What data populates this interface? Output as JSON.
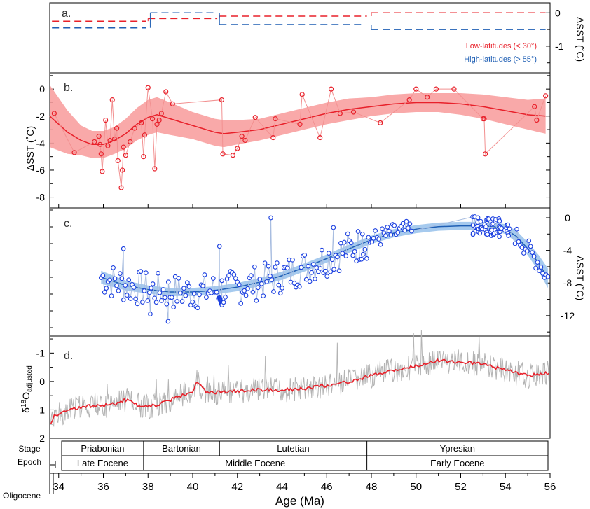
{
  "figure": {
    "x_axis_label": "Age (Ma)",
    "x_ticks": [
      "34",
      "36",
      "38",
      "40",
      "42",
      "44",
      "46",
      "48",
      "50",
      "52",
      "54",
      "56"
    ]
  },
  "colors": {
    "low_lat": "#e8202a",
    "low_band": "#f8a0a0",
    "high_lat": "#1f5fb4",
    "high_band": "#9cc4ec",
    "points_blue": "#1a3fe0",
    "grey": "#b4b4b4"
  },
  "panel_a": {
    "label": "a.",
    "y_label": "ΔSST (˚C)",
    "y_ticks": [
      "0",
      "-1"
    ],
    "legend": [
      "Low-latitudes (< 30°)",
      "High-latitudes (> 55°)"
    ]
  },
  "panel_b": {
    "label": "b.",
    "y_label": "ΔSST (˚C)",
    "y_ticks": [
      "0",
      "-2",
      "-4",
      "-6",
      "-8"
    ]
  },
  "panel_c": {
    "label": "c.",
    "y_label": "ΔSST (˚C)",
    "y_ticks": [
      "0",
      "-4",
      "-8",
      "-12"
    ]
  },
  "panel_d": {
    "label": "d.",
    "y_label": "δ18Oadjusted",
    "y_ticks": [
      "-1",
      "0",
      "1",
      "2"
    ]
  },
  "stages": {
    "row_label": "Stage",
    "items": [
      {
        "name": "Priabonian",
        "start": 33.9,
        "end": 37.8
      },
      {
        "name": "Bartonian",
        "start": 37.8,
        "end": 41.2
      },
      {
        "name": "Lutetian",
        "start": 41.2,
        "end": 47.8
      },
      {
        "name": "Ypresian",
        "start": 47.8,
        "end": 56.0
      }
    ]
  },
  "epochs": {
    "row_label": "Epoch",
    "oligocene_label": "Oligocene",
    "items": [
      {
        "name": "Late Eocene",
        "start": 33.9,
        "end": 37.8
      },
      {
        "name": "Middle Eocene",
        "start": 37.8,
        "end": 47.8
      },
      {
        "name": "Early Eocene",
        "start": 47.8,
        "end": 56.0
      }
    ]
  },
  "chart_data": [
    {
      "type": "line",
      "panel": "a",
      "x_range": [
        33.6,
        56.0
      ],
      "ylim": [
        -1.8,
        0.3
      ],
      "series": [
        {
          "name": "Low-latitudes (< 30°)",
          "segments": [
            {
              "x": [
                33.7,
                37.9
              ],
              "y": -0.25
            },
            {
              "x": [
                38.0,
                41.1
              ],
              "y": -0.17
            },
            {
              "x": [
                41.2,
                47.8
              ],
              "y": -0.1
            },
            {
              "x": [
                48.0,
                55.8
              ],
              "y": 0.0
            }
          ]
        },
        {
          "name": "High-latitudes (> 55°)",
          "segments": [
            {
              "x": [
                33.7,
                37.9
              ],
              "y": -0.45
            },
            {
              "x": [
                38.1,
                41.1
              ],
              "y": 0.0
            },
            {
              "x": [
                41.2,
                47.7
              ],
              "y": -0.35
            },
            {
              "x": [
                48.0,
                55.8
              ],
              "y": -0.5
            }
          ]
        }
      ]
    },
    {
      "type": "scatter",
      "panel": "b",
      "x_range": [
        33.6,
        56.0
      ],
      "ylim": [
        -8.8,
        1.2
      ],
      "points": [
        [
          33.8,
          -1.8
        ],
        [
          34.7,
          -4.7
        ],
        [
          35.6,
          -3.9
        ],
        [
          35.8,
          -3.5
        ],
        [
          35.85,
          -4.1
        ],
        [
          35.9,
          -4.8
        ],
        [
          35.95,
          -6.1
        ],
        [
          36.1,
          -2.3
        ],
        [
          36.2,
          -4.2
        ],
        [
          36.3,
          -3.8
        ],
        [
          36.4,
          -0.8
        ],
        [
          36.5,
          -3.7
        ],
        [
          36.6,
          -2.9
        ],
        [
          36.65,
          -5.3
        ],
        [
          36.8,
          -7.3
        ],
        [
          36.85,
          -6.0
        ],
        [
          36.9,
          -4.3
        ],
        [
          37.0,
          -4.9
        ],
        [
          37.2,
          -3.9
        ],
        [
          37.4,
          -2.9
        ],
        [
          37.7,
          -2.5
        ],
        [
          37.8,
          -5.0
        ],
        [
          37.85,
          -3.4
        ],
        [
          38.0,
          0.1
        ],
        [
          38.2,
          -2.2
        ],
        [
          38.3,
          -5.9
        ],
        [
          38.4,
          -2.6
        ],
        [
          38.5,
          -2.3
        ],
        [
          38.6,
          -1.8
        ],
        [
          38.8,
          -0.2
        ],
        [
          39.1,
          -1.1
        ],
        [
          41.3,
          -0.8
        ],
        [
          41.35,
          -4.8
        ],
        [
          41.8,
          -4.9
        ],
        [
          42.0,
          -4.4
        ],
        [
          42.2,
          -3.5
        ],
        [
          42.35,
          -3.8
        ],
        [
          42.8,
          -2.1
        ],
        [
          43.6,
          -3.6
        ],
        [
          43.7,
          -2.2
        ],
        [
          44.8,
          -2.6
        ],
        [
          44.9,
          -0.4
        ],
        [
          45.7,
          -3.6
        ],
        [
          46.2,
          0.0
        ],
        [
          46.6,
          -1.8
        ],
        [
          47.2,
          -1.7
        ],
        [
          48.4,
          -2.5
        ],
        [
          49.7,
          -0.8
        ],
        [
          50.0,
          0.0
        ],
        [
          50.5,
          -0.6
        ],
        [
          50.9,
          0.0
        ],
        [
          51.7,
          0.0
        ],
        [
          53.0,
          -2.2
        ],
        [
          53.05,
          -2.2
        ],
        [
          53.1,
          -4.8
        ],
        [
          55.3,
          -1.3
        ],
        [
          55.4,
          -2.3
        ],
        [
          55.8,
          -0.5
        ]
      ],
      "smooth_x": [
        33.6,
        34.4,
        35.0,
        35.5,
        36.0,
        36.5,
        37.0,
        37.5,
        38.0,
        38.4,
        39.0,
        40.0,
        41.0,
        41.4,
        42.0,
        43.0,
        44.0,
        45.0,
        46.0,
        47.0,
        48.0,
        49.0,
        50.0,
        51.0,
        52.0,
        53.0,
        54.0,
        55.0,
        55.8
      ],
      "smooth_y": [
        -2.0,
        -3.2,
        -3.8,
        -4.1,
        -4.1,
        -3.8,
        -3.3,
        -2.6,
        -2.1,
        -1.9,
        -2.2,
        -2.7,
        -3.2,
        -3.3,
        -3.2,
        -3.0,
        -2.6,
        -2.2,
        -1.8,
        -1.5,
        -1.3,
        -1.1,
        -1.0,
        -1.0,
        -1.1,
        -1.3,
        -1.6,
        -1.9,
        -2.0
      ],
      "band_halfwidth": [
        2.3,
        1.6,
        1.1,
        1.0,
        1.0,
        1.0,
        1.1,
        1.2,
        1.3,
        1.3,
        1.2,
        1.0,
        1.0,
        1.0,
        0.9,
        0.8,
        0.8,
        0.8,
        0.8,
        0.8,
        0.7,
        0.7,
        0.7,
        0.7,
        0.8,
        0.9,
        1.0,
        1.1,
        1.3
      ]
    },
    {
      "type": "scatter",
      "panel": "c",
      "x_range": [
        33.6,
        56.0
      ],
      "ylim": [
        -14.5,
        1.2
      ],
      "smooth_x": [
        35.9,
        37.0,
        38.0,
        39.0,
        40.0,
        41.0,
        42.0,
        43.0,
        44.0,
        45.0,
        46.0,
        47.0,
        48.0,
        49.0,
        50.0,
        51.0,
        52.0,
        53.0,
        53.5,
        54.0,
        54.5,
        55.0,
        55.5,
        55.9
      ],
      "smooth_y": [
        -7.3,
        -8.3,
        -8.8,
        -9.1,
        -9.1,
        -8.9,
        -8.5,
        -7.9,
        -7.1,
        -6.1,
        -5.0,
        -3.8,
        -2.7,
        -1.9,
        -1.4,
        -1.1,
        -1.0,
        -1.0,
        -1.1,
        -1.4,
        -2.3,
        -3.8,
        -5.6,
        -7.4
      ],
      "band_halfwidth": [
        0.8,
        0.6,
        0.5,
        0.5,
        0.5,
        0.5,
        0.5,
        0.5,
        0.5,
        0.5,
        0.5,
        0.5,
        0.5,
        0.5,
        0.5,
        0.5,
        0.5,
        0.5,
        0.5,
        0.6,
        0.7,
        0.8,
        1.0,
        1.2
      ]
    },
    {
      "type": "line",
      "panel": "d",
      "x_range": [
        33.6,
        56.0
      ],
      "ylim": [
        2.0,
        -1.6
      ],
      "x": [
        33.6,
        33.8,
        34.0,
        34.5,
        35.0,
        35.5,
        36.0,
        36.5,
        36.8,
        37.0,
        37.3,
        37.6,
        38.0,
        38.5,
        39.0,
        39.5,
        40.0,
        40.2,
        40.4,
        40.7,
        41.0,
        41.5,
        42.0,
        43.0,
        44.0,
        45.0,
        45.5,
        46.0,
        47.0,
        47.5,
        48.0,
        48.5,
        49.0,
        49.5,
        50.0,
        50.5,
        51.0,
        51.5,
        52.0,
        52.5,
        53.0,
        53.5,
        54.0,
        54.5,
        55.0,
        55.5,
        55.9
      ],
      "y": [
        1.6,
        1.2,
        1.15,
        1.0,
        0.9,
        0.85,
        0.85,
        0.8,
        0.7,
        0.65,
        0.75,
        0.85,
        0.9,
        0.8,
        0.65,
        0.5,
        0.35,
        0.0,
        0.2,
        0.4,
        0.4,
        0.35,
        0.35,
        0.3,
        0.3,
        0.25,
        0.2,
        0.15,
        0.0,
        -0.1,
        -0.2,
        -0.3,
        -0.4,
        -0.45,
        -0.55,
        -0.65,
        -0.75,
        -0.7,
        -0.7,
        -0.65,
        -0.6,
        -0.5,
        -0.4,
        -0.3,
        -0.2,
        -0.25,
        -0.3
      ]
    }
  ]
}
